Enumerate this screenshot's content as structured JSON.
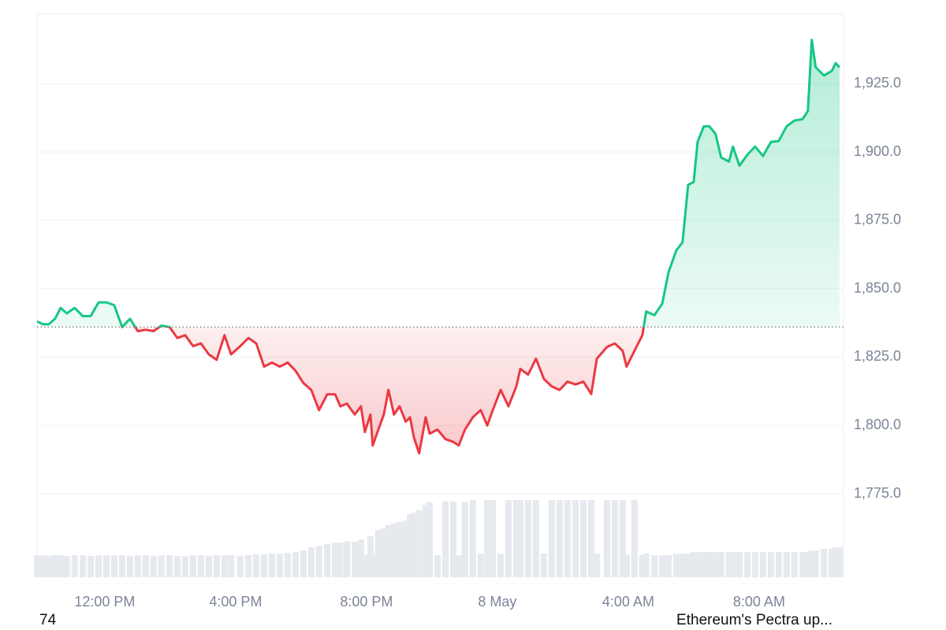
{
  "chart_data": {
    "type": "line",
    "x": [
      -2.07,
      -1.88,
      -1.71,
      -1.52,
      -1.35,
      -1.16,
      -0.92,
      -0.67,
      -0.43,
      -0.19,
      0.05,
      0.29,
      0.53,
      0.77,
      1.01,
      1.25,
      1.49,
      1.73,
      1.98,
      2.22,
      2.46,
      2.7,
      2.94,
      3.18,
      3.42,
      3.66,
      3.86,
      4.14,
      4.39,
      4.63,
      4.87,
      5.11,
      5.35,
      5.59,
      5.83,
      6.07,
      6.31,
      6.55,
      6.8,
      7.04,
      7.2,
      7.4,
      7.64,
      7.83,
      7.95,
      8.12,
      8.19,
      8.36,
      8.53,
      8.67,
      8.84,
      9.01,
      9.2,
      9.33,
      9.45,
      9.61,
      9.81,
      9.93,
      10.17,
      10.41,
      10.65,
      10.82,
      11.01,
      11.25,
      11.49,
      11.69,
      11.86,
      12.1,
      12.34,
      12.58,
      12.7,
      12.94,
      13.18,
      13.42,
      13.66,
      13.9,
      14.14,
      14.39,
      14.63,
      14.87,
      15.04,
      15.35,
      15.59,
      15.83,
      15.95,
      16.19,
      16.43,
      16.55,
      16.8,
      17.04,
      17.23,
      17.47,
      17.66,
      17.83,
      18.0,
      18.12,
      18.31,
      18.48,
      18.67,
      18.84,
      19.08,
      19.2,
      19.4,
      19.64,
      19.88,
      20.12,
      20.36,
      20.6,
      20.84,
      21.08,
      21.33,
      21.49,
      21.61,
      21.73,
      21.98,
      22.22,
      22.34,
      22.46
    ],
    "series": [
      {
        "values": [
          1838,
          1837,
          1837,
          1839,
          1843,
          1841,
          1843,
          1840,
          1840,
          1845,
          1845,
          1844,
          1836,
          1839,
          1834.5,
          1835,
          1834.5,
          1836.5,
          1836,
          1832,
          1833,
          1829,
          1830,
          1826,
          1824,
          1833,
          1826,
          1829,
          1832,
          1830,
          1821.5,
          1823,
          1821.5,
          1823,
          1820,
          1815.5,
          1813,
          1805.6,
          1811.4,
          1811.4,
          1807,
          1808,
          1804,
          1807,
          1797.6,
          1804,
          1792.7,
          1798.5,
          1804,
          1813,
          1804,
          1807,
          1801.4,
          1803,
          1795.6,
          1789.8,
          1803,
          1797,
          1798.5,
          1795,
          1794,
          1792.7,
          1798.5,
          1803,
          1805.6,
          1800,
          1805.6,
          1813,
          1807,
          1814.3,
          1820.7,
          1818.6,
          1824.4,
          1817,
          1814.3,
          1813,
          1816,
          1815,
          1816,
          1811.5,
          1824.4,
          1828.7,
          1830,
          1827.3,
          1821.5,
          1827.3,
          1833,
          1841.7,
          1840.3,
          1844.6,
          1856,
          1864,
          1867,
          1888,
          1889,
          1903.7,
          1909.4,
          1909.4,
          1906.6,
          1898,
          1896.5,
          1902,
          1895,
          1899,
          1902,
          1898.5,
          1903.7,
          1904,
          1909.4,
          1911.5,
          1912,
          1915,
          1941,
          1931,
          1928,
          1929.6,
          1932.5,
          1931
        ]
      }
    ],
    "volume": [
      28,
      28,
      27,
      28,
      28,
      27,
      28,
      28,
      27,
      28,
      28,
      28,
      28,
      27,
      28,
      28,
      27,
      28,
      28,
      27,
      27,
      28,
      28,
      27,
      28,
      28,
      28,
      27,
      28,
      29,
      29,
      30,
      30,
      31,
      32,
      34,
      38,
      40,
      42,
      44,
      44,
      46,
      45,
      48,
      28,
      52,
      28,
      60,
      62,
      66,
      68,
      70,
      72,
      80,
      82,
      85,
      92,
      95,
      28,
      96,
      96,
      28,
      96,
      98,
      30,
      98,
      98,
      30,
      98,
      98,
      98,
      98,
      98,
      30,
      98,
      98,
      98,
      98,
      98,
      98,
      30,
      98,
      98,
      98,
      28,
      98,
      28,
      30,
      28,
      28,
      28,
      30,
      30,
      30,
      32,
      32,
      32,
      32,
      32,
      32,
      32,
      32,
      32,
      32,
      32,
      32,
      32,
      32,
      32,
      32,
      32,
      32,
      34,
      34,
      36,
      36,
      38,
      38
    ],
    "baseline": 1836,
    "up_color": "#16c784",
    "down_color": "#ea3943",
    "volume_color": "#e6e9ee",
    "xlim": [
      -2.07,
      22.58
    ],
    "xticks": [
      {
        "value": 0,
        "label": "12:00 PM"
      },
      {
        "value": 4,
        "label": "4:00 PM"
      },
      {
        "value": 8,
        "label": "8:00 PM"
      },
      {
        "value": 12,
        "label": "8 May"
      },
      {
        "value": 16,
        "label": "4:00 AM"
      },
      {
        "value": 20,
        "label": "8:00 AM"
      }
    ],
    "ylim": [
      1744.5,
      1950.4
    ],
    "yticks": [
      {
        "value": 1775,
        "label": "1,775.0"
      },
      {
        "value": 1800,
        "label": "1,800.0"
      },
      {
        "value": 1825,
        "label": "1,825.0"
      },
      {
        "value": 1850,
        "label": "1,850.0"
      },
      {
        "value": 1875,
        "label": "1,875.0"
      },
      {
        "value": 1900,
        "label": "1,900.0"
      },
      {
        "value": 1925,
        "label": "1,925.0"
      }
    ],
    "grid": true
  },
  "footer": {
    "left": "74",
    "right": "Ethereum's Pectra up..."
  }
}
